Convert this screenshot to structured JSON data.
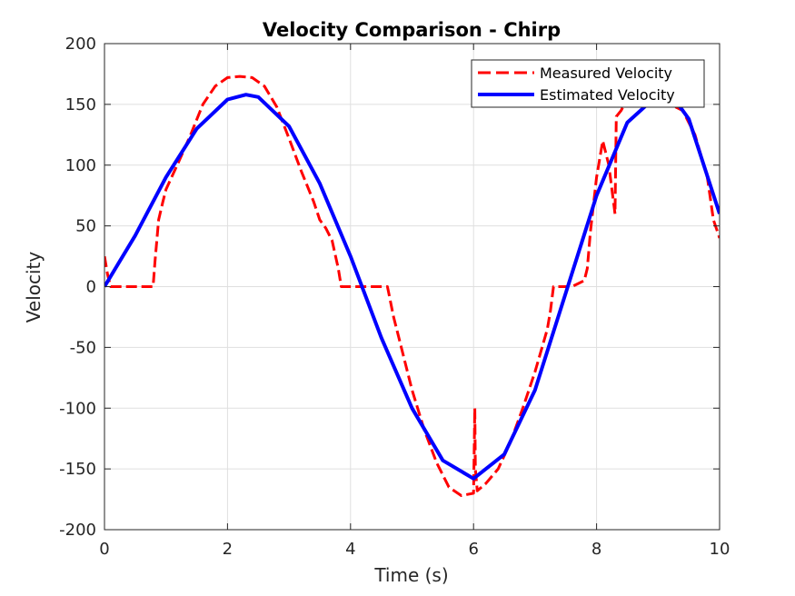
{
  "chart_data": {
    "type": "line",
    "title": "Velocity Comparison - Chirp",
    "xlabel": "Time (s)",
    "ylabel": "Velocity",
    "xlim": [
      0,
      10
    ],
    "ylim": [
      -200,
      200
    ],
    "xticks": [
      0,
      2,
      4,
      6,
      8,
      10
    ],
    "yticks": [
      -200,
      -150,
      -100,
      -50,
      0,
      50,
      100,
      150,
      200
    ],
    "grid": true,
    "legend_position": "top-right",
    "series": [
      {
        "name": "Measured Velocity",
        "color": "#ff0000",
        "style": "dashed",
        "x": [
          0,
          0.05,
          0.1,
          0.2,
          0.4,
          0.6,
          0.79,
          0.82,
          0.88,
          0.95,
          1.0,
          1.2,
          1.4,
          1.6,
          1.8,
          2.0,
          2.2,
          2.4,
          2.6,
          2.8,
          3.0,
          3.2,
          3.4,
          3.5,
          3.6,
          3.7,
          3.8,
          3.85,
          3.9,
          3.92,
          4.0,
          4.2,
          4.4,
          4.6,
          4.62,
          4.7,
          4.8,
          5.0,
          5.2,
          5.4,
          5.6,
          5.8,
          6.0,
          6.02,
          6.03,
          6.06,
          6.2,
          6.4,
          6.6,
          6.8,
          7.0,
          7.2,
          7.25,
          7.3,
          7.4,
          7.6,
          7.8,
          7.85,
          7.9,
          8.0,
          8.1,
          8.2,
          8.3,
          8.32,
          8.4,
          8.45,
          8.5,
          8.6,
          8.8,
          9.0,
          9.2,
          9.4,
          9.6,
          9.8,
          9.9,
          10.0
        ],
        "values": [
          25,
          10,
          0,
          0,
          0,
          0,
          0,
          20,
          55,
          70,
          80,
          102,
          125,
          150,
          165,
          172,
          173,
          172,
          165,
          148,
          122,
          95,
          70,
          55,
          48,
          38,
          15,
          0,
          0,
          0,
          0,
          0,
          0,
          0,
          -5,
          -25,
          -45,
          -85,
          -118,
          -145,
          -165,
          -172,
          -170,
          -100,
          -150,
          -168,
          -162,
          -150,
          -128,
          -100,
          -70,
          -35,
          -20,
          0,
          0,
          0,
          5,
          15,
          45,
          90,
          120,
          100,
          60,
          140,
          145,
          150,
          155,
          160,
          162,
          158,
          150,
          145,
          125,
          90,
          55,
          40
        ]
      },
      {
        "name": "Estimated Velocity",
        "color": "#0000ff",
        "style": "solid",
        "x": [
          0,
          0.5,
          1.0,
          1.5,
          2.0,
          2.3,
          2.5,
          3.0,
          3.5,
          4.0,
          4.5,
          5.0,
          5.5,
          6.0,
          6.5,
          7.0,
          7.5,
          8.0,
          8.5,
          9.0,
          9.3,
          9.5,
          10.0
        ],
        "values": [
          0,
          42,
          90,
          130,
          154,
          158,
          156,
          132,
          85,
          25,
          -42,
          -100,
          -143,
          -158,
          -138,
          -85,
          -5,
          75,
          135,
          158,
          152,
          138,
          60
        ]
      }
    ]
  }
}
